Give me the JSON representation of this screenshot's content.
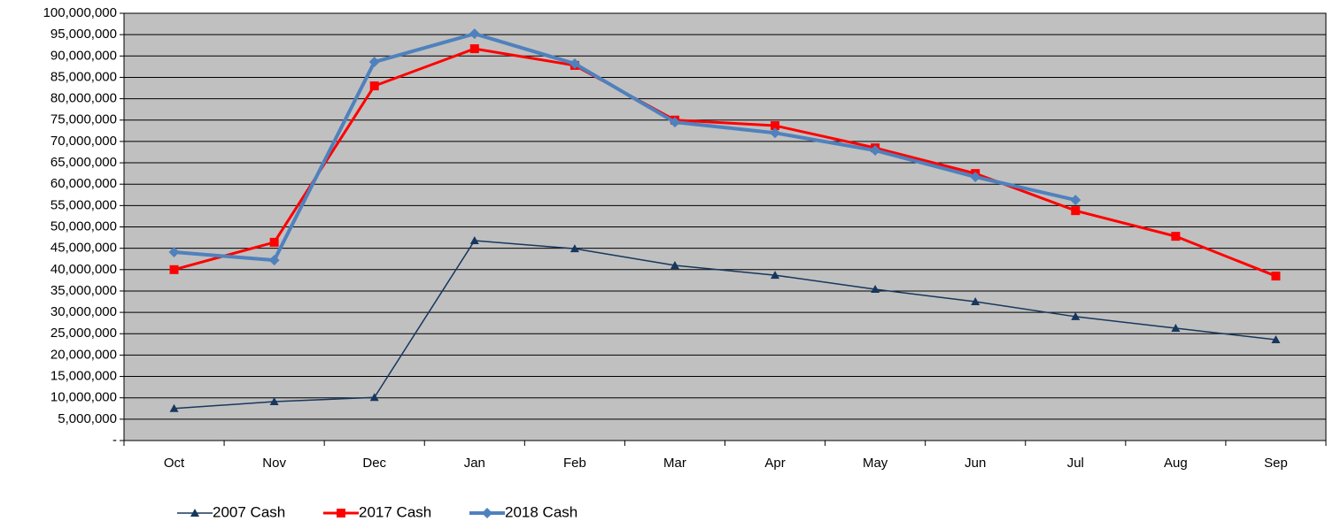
{
  "chart_data": {
    "type": "line",
    "categories": [
      "Oct",
      "Nov",
      "Dec",
      "Jan",
      "Feb",
      "Mar",
      "Apr",
      "May",
      "Jun",
      "Jul",
      "Aug",
      "Sep"
    ],
    "series": [
      {
        "name": "2007 Cash",
        "color": "#17375e",
        "marker": "triangle",
        "values": [
          7500000,
          9100000,
          10100000,
          46800000,
          44900000,
          41000000,
          38700000,
          35400000,
          32500000,
          29000000,
          26300000,
          23600000
        ]
      },
      {
        "name": "2017 Cash",
        "color": "#ff0000",
        "marker": "square",
        "values": [
          40000000,
          46400000,
          83000000,
          91700000,
          87800000,
          75000000,
          73700000,
          68500000,
          62500000,
          53800000,
          47800000,
          38500000
        ]
      },
      {
        "name": "2018 Cash",
        "color": "#4f81bd",
        "marker": "diamond",
        "values": [
          44100000,
          42200000,
          88600000,
          95200000,
          88200000,
          74500000,
          72000000,
          67900000,
          61700000,
          56300000,
          null,
          null
        ]
      }
    ],
    "ylim": [
      0,
      100000000
    ],
    "yticks": [
      {
        "value": 0,
        "label": "-"
      },
      {
        "value": 5000000,
        "label": "5,000,000"
      },
      {
        "value": 10000000,
        "label": "10,000,000"
      },
      {
        "value": 15000000,
        "label": "15,000,000"
      },
      {
        "value": 20000000,
        "label": "20,000,000"
      },
      {
        "value": 25000000,
        "label": "25,000,000"
      },
      {
        "value": 30000000,
        "label": "30,000,000"
      },
      {
        "value": 35000000,
        "label": "35,000,000"
      },
      {
        "value": 40000000,
        "label": "40,000,000"
      },
      {
        "value": 45000000,
        "label": "45,000,000"
      },
      {
        "value": 50000000,
        "label": "50,000,000"
      },
      {
        "value": 55000000,
        "label": "55,000,000"
      },
      {
        "value": 60000000,
        "label": "60,000,000"
      },
      {
        "value": 65000000,
        "label": "65,000,000"
      },
      {
        "value": 70000000,
        "label": "70,000,000"
      },
      {
        "value": 75000000,
        "label": "75,000,000"
      },
      {
        "value": 80000000,
        "label": "80,000,000"
      },
      {
        "value": 85000000,
        "label": "85,000,000"
      },
      {
        "value": 90000000,
        "label": "90,000,000"
      },
      {
        "value": 95000000,
        "label": "95,000,000"
      },
      {
        "value": 100000000,
        "label": "100,000,000"
      }
    ],
    "grid": true,
    "plot_background": "#c0c0c0",
    "legend": "bottom"
  }
}
